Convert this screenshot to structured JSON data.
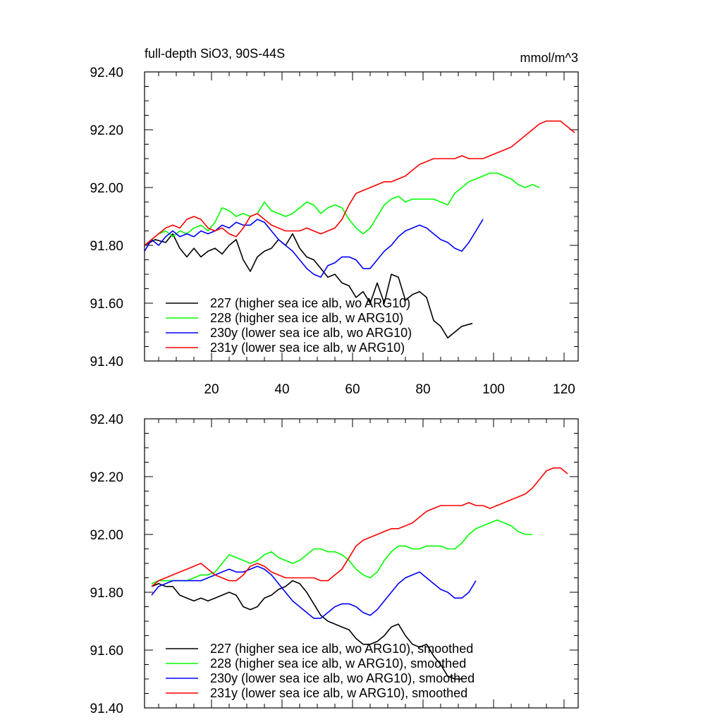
{
  "chart_data": [
    {
      "type": "line",
      "title": "full-depth SiO3, 90S-44S",
      "units": "mmol/m^3",
      "xlim": [
        1,
        124
      ],
      "ylim": [
        91.4,
        92.4
      ],
      "xticks": [
        20,
        40,
        60,
        80,
        100,
        120
      ],
      "xtick_labels": [
        "20",
        "40",
        "60",
        "80",
        "100",
        "120"
      ],
      "yticks": [
        91.4,
        91.6,
        91.8,
        92.0,
        92.2,
        92.4
      ],
      "ytick_labels": [
        "91.40",
        "91.60",
        "91.80",
        "92.00",
        "92.20",
        "92.40"
      ],
      "grid": false,
      "legend_position": "bottom-left",
      "series": [
        {
          "name": "227 (higher sea ice alb, wo ARG10)",
          "color": "#000000",
          "x": [
            1,
            4,
            7,
            9,
            11,
            13,
            15,
            17,
            19,
            21,
            23,
            25,
            27,
            29,
            31,
            33,
            35,
            37,
            39,
            41,
            43,
            45,
            47,
            49,
            51,
            53,
            55,
            57,
            59,
            61,
            63,
            65,
            67,
            69,
            71,
            73,
            75,
            77,
            79,
            81,
            83,
            85,
            87,
            89,
            91,
            94
          ],
          "y": [
            91.8,
            91.82,
            91.81,
            91.84,
            91.79,
            91.76,
            91.79,
            91.76,
            91.78,
            91.79,
            91.77,
            91.8,
            91.82,
            91.75,
            91.71,
            91.76,
            91.78,
            91.79,
            91.82,
            91.8,
            91.84,
            91.79,
            91.76,
            91.75,
            91.72,
            91.69,
            91.7,
            91.67,
            91.66,
            91.62,
            91.64,
            91.6,
            91.67,
            91.6,
            91.7,
            91.69,
            91.61,
            91.63,
            91.64,
            91.62,
            91.54,
            91.52,
            91.48,
            91.5,
            91.52,
            91.53
          ]
        },
        {
          "name": "228 (higher sea ice alb, w ARG10)",
          "color": "#00ff00",
          "x": [
            1,
            3,
            5,
            7,
            9,
            11,
            13,
            15,
            17,
            19,
            21,
            23,
            25,
            27,
            29,
            31,
            33,
            35,
            37,
            39,
            41,
            43,
            45,
            47,
            49,
            51,
            53,
            55,
            57,
            59,
            61,
            63,
            65,
            67,
            69,
            71,
            73,
            75,
            77,
            79,
            81,
            83,
            85,
            87,
            89,
            91,
            93,
            95,
            97,
            99,
            101,
            103,
            105,
            107,
            109,
            111,
            113
          ],
          "y": [
            91.8,
            91.82,
            91.84,
            91.85,
            91.83,
            91.85,
            91.84,
            91.86,
            91.87,
            91.85,
            91.88,
            91.93,
            91.92,
            91.9,
            91.91,
            91.9,
            91.91,
            91.95,
            91.92,
            91.91,
            91.9,
            91.91,
            91.93,
            91.95,
            91.94,
            91.91,
            91.93,
            91.94,
            91.93,
            91.89,
            91.86,
            91.84,
            91.86,
            91.9,
            91.94,
            91.96,
            91.97,
            91.95,
            91.96,
            91.96,
            91.96,
            91.96,
            91.95,
            91.94,
            91.98,
            92.0,
            92.02,
            92.03,
            92.04,
            92.05,
            92.05,
            92.04,
            92.03,
            92.01,
            92.0,
            92.01,
            92.0
          ]
        },
        {
          "name": "230y (lower sea ice alb, wo ARG10)",
          "color": "#0000ff",
          "x": [
            1,
            3,
            5,
            7,
            9,
            11,
            13,
            15,
            17,
            19,
            21,
            23,
            25,
            27,
            29,
            31,
            33,
            35,
            37,
            39,
            41,
            43,
            45,
            47,
            49,
            51,
            53,
            55,
            57,
            59,
            61,
            63,
            65,
            67,
            69,
            71,
            73,
            75,
            77,
            79,
            81,
            83,
            85,
            87,
            89,
            91,
            93,
            95,
            97
          ],
          "y": [
            91.78,
            91.82,
            91.8,
            91.83,
            91.85,
            91.83,
            91.84,
            91.83,
            91.85,
            91.84,
            91.85,
            91.87,
            91.86,
            91.88,
            91.87,
            91.87,
            91.89,
            91.88,
            91.85,
            91.82,
            91.8,
            91.78,
            91.75,
            91.72,
            91.7,
            91.69,
            91.73,
            91.74,
            91.76,
            91.76,
            91.75,
            91.72,
            91.72,
            91.75,
            91.78,
            91.8,
            91.83,
            91.85,
            91.86,
            91.87,
            91.86,
            91.84,
            91.82,
            91.81,
            91.79,
            91.78,
            91.81,
            91.85,
            91.89
          ]
        },
        {
          "name": "231y (lower sea ice alb, w ARG10)",
          "color": "#ff0000",
          "x": [
            1,
            3,
            5,
            7,
            9,
            11,
            13,
            15,
            17,
            19,
            21,
            23,
            25,
            27,
            29,
            31,
            33,
            35,
            37,
            39,
            41,
            43,
            45,
            47,
            49,
            51,
            53,
            55,
            57,
            59,
            61,
            63,
            65,
            67,
            69,
            71,
            73,
            75,
            77,
            79,
            81,
            83,
            85,
            87,
            89,
            91,
            93,
            95,
            97,
            99,
            101,
            103,
            105,
            107,
            109,
            111,
            113,
            115,
            117,
            119,
            121,
            123
          ],
          "y": [
            91.8,
            91.82,
            91.84,
            91.86,
            91.87,
            91.86,
            91.89,
            91.9,
            91.89,
            91.86,
            91.85,
            91.86,
            91.84,
            91.83,
            91.86,
            91.9,
            91.91,
            91.89,
            91.87,
            91.86,
            91.85,
            91.85,
            91.85,
            91.86,
            91.85,
            91.84,
            91.85,
            91.86,
            91.89,
            91.94,
            91.98,
            91.99,
            92.0,
            92.01,
            92.02,
            92.02,
            92.03,
            92.04,
            92.06,
            92.08,
            92.09,
            92.1,
            92.1,
            92.1,
            92.1,
            92.11,
            92.1,
            92.1,
            92.1,
            92.11,
            92.12,
            92.13,
            92.14,
            92.16,
            92.18,
            92.2,
            92.22,
            92.23,
            92.23,
            92.23,
            92.21,
            92.19
          ]
        }
      ]
    },
    {
      "type": "line",
      "xlim": [
        1,
        124
      ],
      "ylim": [
        91.4,
        92.4
      ],
      "xticks": [
        20,
        40,
        60,
        80,
        100,
        120
      ],
      "yticks": [
        91.4,
        91.6,
        91.8,
        92.0,
        92.2,
        92.4
      ],
      "ytick_labels": [
        "91.40",
        "91.60",
        "91.80",
        "92.00",
        "92.20",
        "92.40"
      ],
      "grid": false,
      "legend_position": "bottom-left",
      "series": [
        {
          "name": "227 (higher sea ice alb, wo ARG10), smoothed",
          "color": "#000000",
          "x": [
            3,
            5,
            7,
            9,
            11,
            13,
            15,
            17,
            19,
            21,
            23,
            25,
            27,
            29,
            31,
            33,
            35,
            37,
            39,
            41,
            43,
            45,
            47,
            49,
            51,
            53,
            55,
            57,
            59,
            61,
            63,
            65,
            67,
            69,
            71,
            73,
            75,
            77,
            79,
            81,
            83,
            85,
            87,
            89,
            91
          ],
          "y": [
            91.82,
            91.83,
            91.82,
            91.82,
            91.79,
            91.78,
            91.77,
            91.78,
            91.77,
            91.78,
            91.79,
            91.8,
            91.79,
            91.75,
            91.74,
            91.75,
            91.78,
            91.79,
            91.81,
            91.82,
            91.84,
            91.83,
            91.8,
            91.76,
            91.72,
            91.7,
            91.69,
            91.68,
            91.67,
            91.64,
            91.62,
            91.62,
            91.63,
            91.65,
            91.68,
            91.69,
            91.65,
            91.62,
            91.61,
            91.62,
            91.58,
            91.55,
            91.51,
            91.5,
            91.5
          ]
        },
        {
          "name": "228 (higher sea ice alb, w ARG10), smoothed",
          "color": "#00ff00",
          "x": [
            3,
            5,
            7,
            9,
            11,
            13,
            15,
            17,
            19,
            21,
            23,
            25,
            27,
            29,
            31,
            33,
            35,
            37,
            39,
            41,
            43,
            45,
            47,
            49,
            51,
            53,
            55,
            57,
            59,
            61,
            63,
            65,
            67,
            69,
            71,
            73,
            75,
            77,
            79,
            81,
            83,
            85,
            87,
            89,
            91,
            93,
            95,
            97,
            99,
            101,
            103,
            105,
            107,
            109,
            111
          ],
          "y": [
            91.83,
            91.84,
            91.84,
            91.84,
            91.84,
            91.84,
            91.85,
            91.86,
            91.86,
            91.87,
            91.9,
            91.93,
            91.92,
            91.91,
            91.9,
            91.91,
            91.93,
            91.94,
            91.92,
            91.91,
            91.9,
            91.91,
            91.93,
            91.95,
            91.95,
            91.94,
            91.94,
            91.93,
            91.91,
            91.88,
            91.86,
            91.85,
            91.87,
            91.91,
            91.94,
            91.96,
            91.96,
            91.95,
            91.95,
            91.96,
            91.96,
            91.96,
            91.95,
            91.95,
            91.97,
            92.0,
            92.02,
            92.03,
            92.04,
            92.05,
            92.04,
            92.03,
            92.01,
            92.0,
            92.0
          ]
        },
        {
          "name": "230y (lower sea ice alb, wo ARG10), smoothed",
          "color": "#0000ff",
          "x": [
            3,
            5,
            7,
            9,
            11,
            13,
            15,
            17,
            19,
            21,
            23,
            25,
            27,
            29,
            31,
            33,
            35,
            37,
            39,
            41,
            43,
            45,
            47,
            49,
            51,
            53,
            55,
            57,
            59,
            61,
            63,
            65,
            67,
            69,
            71,
            73,
            75,
            77,
            79,
            81,
            83,
            85,
            87,
            89,
            91,
            93,
            95
          ],
          "y": [
            91.79,
            91.82,
            91.83,
            91.84,
            91.84,
            91.84,
            91.84,
            91.84,
            91.85,
            91.86,
            91.87,
            91.88,
            91.87,
            91.87,
            91.88,
            91.89,
            91.88,
            91.86,
            91.83,
            91.8,
            91.77,
            91.75,
            91.73,
            91.71,
            91.71,
            91.73,
            91.75,
            91.76,
            91.76,
            91.75,
            91.73,
            91.72,
            91.74,
            91.77,
            91.8,
            91.83,
            91.85,
            91.86,
            91.87,
            91.85,
            91.83,
            91.81,
            91.8,
            91.78,
            91.78,
            91.8,
            91.84
          ]
        },
        {
          "name": "231y (lower sea ice alb, w ARG10), smoothed",
          "color": "#ff0000",
          "x": [
            3,
            5,
            7,
            9,
            11,
            13,
            15,
            17,
            19,
            21,
            23,
            25,
            27,
            29,
            31,
            33,
            35,
            37,
            39,
            41,
            43,
            45,
            47,
            49,
            51,
            53,
            55,
            57,
            59,
            61,
            63,
            65,
            67,
            69,
            71,
            73,
            75,
            77,
            79,
            81,
            83,
            85,
            87,
            89,
            91,
            93,
            95,
            97,
            99,
            101,
            103,
            105,
            107,
            109,
            111,
            113,
            115,
            117,
            119,
            121
          ],
          "y": [
            91.82,
            91.84,
            91.85,
            91.86,
            91.87,
            91.88,
            91.89,
            91.9,
            91.88,
            91.86,
            91.85,
            91.84,
            91.84,
            91.86,
            91.89,
            91.9,
            91.89,
            91.87,
            91.86,
            91.85,
            91.85,
            91.85,
            91.85,
            91.85,
            91.84,
            91.84,
            91.86,
            91.88,
            91.92,
            91.96,
            91.98,
            91.99,
            92.0,
            92.01,
            92.02,
            92.02,
            92.03,
            92.04,
            92.06,
            92.08,
            92.09,
            92.1,
            92.1,
            92.1,
            92.1,
            92.11,
            92.1,
            92.1,
            92.09,
            92.1,
            92.11,
            92.12,
            92.13,
            92.14,
            92.16,
            92.19,
            92.22,
            92.23,
            92.23,
            92.21
          ]
        }
      ]
    }
  ]
}
